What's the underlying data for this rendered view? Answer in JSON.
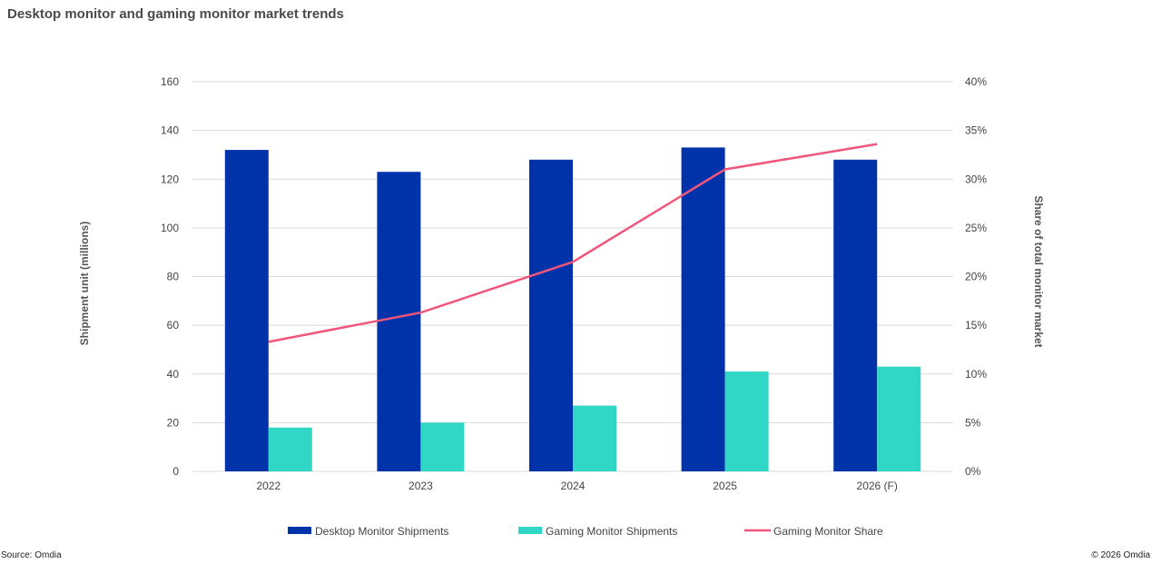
{
  "title": "Desktop monitor and gaming monitor market trends",
  "footer": {
    "source": "Source: Omdia",
    "copyright": "© 2026 Omdia"
  },
  "colors": {
    "desktop": "#0033AA",
    "gaming": "#30D6C6",
    "share": "#F0567C",
    "grid": "#D9D9D9"
  },
  "chart_data": {
    "type": "bar",
    "categories": [
      "2022",
      "2023",
      "2024",
      "2025",
      "2026 (F)"
    ],
    "series": [
      {
        "name": "Desktop Monitor Shipments",
        "type": "bar",
        "axis": "left",
        "values": [
          132,
          123,
          128,
          133,
          128
        ]
      },
      {
        "name": "Gaming Monitor Shipments",
        "type": "bar",
        "axis": "left",
        "values": [
          18,
          20,
          27,
          41,
          43
        ]
      },
      {
        "name": "Gaming Monitor Share",
        "type": "line",
        "axis": "right",
        "values": [
          13.3,
          16.3,
          21.5,
          31.0,
          33.6
        ]
      }
    ],
    "ylabel": "Shipment unit (millions)",
    "y2label": "Share of total monitor market",
    "ylim": [
      0,
      160
    ],
    "y2lim": [
      0,
      40
    ],
    "yticks": [
      "0",
      "20",
      "40",
      "60",
      "80",
      "100",
      "120",
      "140",
      "160"
    ],
    "y2ticks": [
      "0%",
      "5%",
      "10%",
      "15%",
      "20%",
      "25%",
      "30%",
      "35%",
      "40%"
    ],
    "grid": true,
    "legend_position": "bottom"
  }
}
